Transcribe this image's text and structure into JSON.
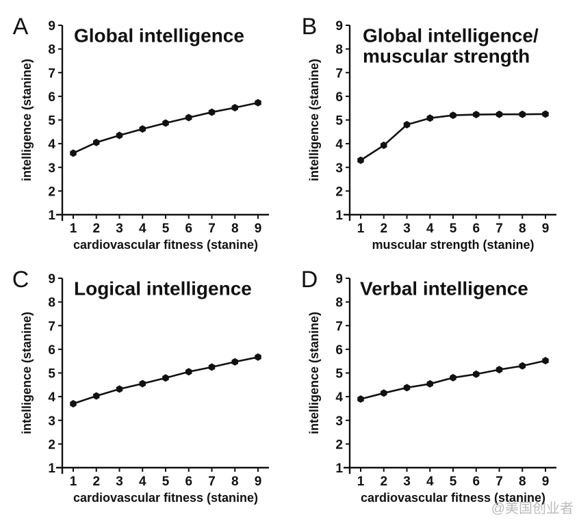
{
  "chart_data": [
    {
      "type": "line",
      "panel": "A",
      "title": [
        "Global intelligence"
      ],
      "xlabel": "cardiovascular fitness (stanine)",
      "ylabel": "intelligence (stanine)",
      "x": [
        1,
        2,
        3,
        4,
        5,
        6,
        7,
        8,
        9
      ],
      "values": [
        3.6,
        4.05,
        4.35,
        4.62,
        4.87,
        5.1,
        5.33,
        5.52,
        5.73
      ],
      "xlim": [
        1,
        9
      ],
      "ylim": [
        1,
        9
      ],
      "xticks": [
        "1",
        "2",
        "3",
        "4",
        "5",
        "6",
        "7",
        "8",
        "9"
      ],
      "yticks": [
        "1",
        "2",
        "3",
        "4",
        "5",
        "6",
        "7",
        "8",
        "9"
      ]
    },
    {
      "type": "line",
      "panel": "B",
      "title": [
        "Global intelligence/",
        "muscular strength"
      ],
      "xlabel": "muscular strength (stanine)",
      "ylabel": "intelligence (stanine)",
      "x": [
        1,
        2,
        3,
        4,
        5,
        6,
        7,
        8,
        9
      ],
      "values": [
        3.3,
        3.93,
        4.8,
        5.08,
        5.2,
        5.23,
        5.24,
        5.24,
        5.25
      ],
      "xlim": [
        1,
        9
      ],
      "ylim": [
        1,
        9
      ],
      "xticks": [
        "1",
        "2",
        "3",
        "4",
        "5",
        "6",
        "7",
        "8",
        "9"
      ],
      "yticks": [
        "1",
        "2",
        "3",
        "4",
        "5",
        "6",
        "7",
        "8",
        "9"
      ]
    },
    {
      "type": "line",
      "panel": "C",
      "title": [
        "Logical intelligence"
      ],
      "xlabel": "cardiovascular fitness (stanine)",
      "ylabel": "intelligence (stanine)",
      "x": [
        1,
        2,
        3,
        4,
        5,
        6,
        7,
        8,
        9
      ],
      "values": [
        3.7,
        4.03,
        4.32,
        4.55,
        4.79,
        5.05,
        5.25,
        5.47,
        5.67
      ],
      "xlim": [
        1,
        9
      ],
      "ylim": [
        1,
        9
      ],
      "xticks": [
        "1",
        "2",
        "3",
        "4",
        "5",
        "6",
        "7",
        "8",
        "9"
      ],
      "yticks": [
        "1",
        "2",
        "3",
        "4",
        "5",
        "6",
        "7",
        "8",
        "9"
      ]
    },
    {
      "type": "line",
      "panel": "D",
      "title": [
        "Verbal intelligence"
      ],
      "xlabel": "cardiovascular fitness (stanine)",
      "ylabel": "intelligence (stanine)",
      "x": [
        1,
        2,
        3,
        4,
        5,
        6,
        7,
        8,
        9
      ],
      "values": [
        3.9,
        4.15,
        4.38,
        4.54,
        4.8,
        4.95,
        5.14,
        5.3,
        5.52
      ],
      "xlim": [
        1,
        9
      ],
      "ylim": [
        1,
        9
      ],
      "xticks": [
        "1",
        "2",
        "3",
        "4",
        "5",
        "6",
        "7",
        "8",
        "9"
      ],
      "yticks": [
        "1",
        "2",
        "3",
        "4",
        "5",
        "6",
        "7",
        "8",
        "9"
      ]
    }
  ],
  "watermark": "@美国创业者",
  "colors": {
    "ink": "#111111",
    "background": "#ffffff",
    "watermark": "#bbbbbb"
  }
}
